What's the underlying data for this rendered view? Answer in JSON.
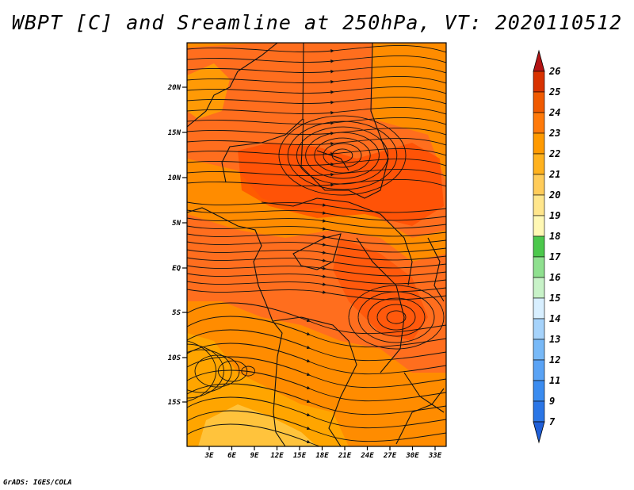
{
  "title": "WBPT [C] and Sreamline at 250hPa, VT: 2020110512",
  "credit": "GrADS: IGES/COLA",
  "map": {
    "lat_ticks": [
      "20N",
      "15N",
      "10N",
      "5N",
      "EQ",
      "5S",
      "10S",
      "15S"
    ],
    "lon_ticks": [
      "3E",
      "6E",
      "9E",
      "12E",
      "15E",
      "18E",
      "21E",
      "24E",
      "27E",
      "30E",
      "33E"
    ],
    "fill_colors": {
      "c20": "#ffc33c",
      "c21": "#ffa500",
      "c22": "#ff8c00",
      "c23": "#ff6e1e",
      "c24": "#ff4b00",
      "line": "#111111"
    }
  },
  "colorbar": {
    "labels": [
      "7",
      "9",
      "11",
      "12",
      "13",
      "14",
      "15",
      "16",
      "17",
      "18",
      "19",
      "20",
      "21",
      "22",
      "23",
      "24",
      "25",
      "26"
    ],
    "colors": [
      "#1f5fd8",
      "#2b76e6",
      "#3b8cf0",
      "#5aa3f5",
      "#78b9f7",
      "#a6d3fb",
      "#d8efff",
      "#c8f2c8",
      "#8fe08f",
      "#4cc84c",
      "#fff8b4",
      "#ffe68c",
      "#ffcc5a",
      "#ffb21e",
      "#ff9a00",
      "#ff7a0a",
      "#f05a00",
      "#d83200",
      "#b41414"
    ]
  }
}
